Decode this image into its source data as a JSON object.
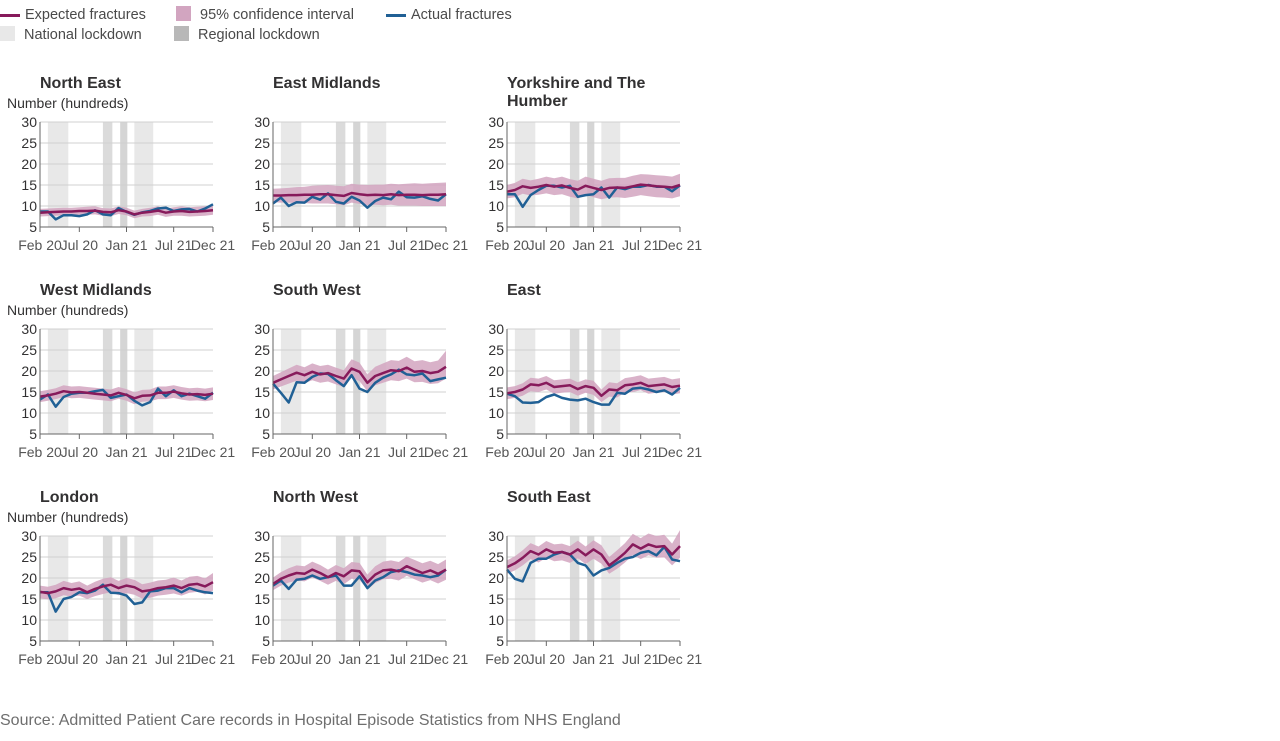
{
  "legend": {
    "expected": "Expected fractures",
    "ci": "95% confidence interval",
    "actual": "Actual fractures",
    "national": "National lockdown",
    "regional": "Regional lockdown"
  },
  "colors": {
    "expected": "#871a5b",
    "ci": "#d2a5c0",
    "actual": "#206095",
    "national": "#e8e8e8",
    "regional": "#c3c3c3",
    "grid": "#d0d0d0",
    "axis": "#666666",
    "text": "#323132"
  },
  "source": "Source: Admitted Patient Care records in Hospital Episode Statistics from NHS England",
  "chart_data": {
    "type": "line",
    "ylabel": "Number (hundreds)",
    "ylim": [
      5,
      30
    ],
    "yticks": [
      5,
      10,
      15,
      20,
      25,
      30
    ],
    "x_tick_labels": [
      "Feb 20",
      "Jul 20",
      "Jan 21",
      "Jul 21",
      "Dec 21"
    ],
    "x_tick_index": [
      0,
      5,
      11,
      17,
      22
    ],
    "x_points": 23,
    "national_lockdowns": [
      [
        1,
        3.6
      ],
      [
        10.2,
        11.1
      ],
      [
        12,
        14.4
      ]
    ],
    "regional_lockdowns": [
      [
        8,
        9.2
      ],
      [
        10.2,
        11.1
      ]
    ],
    "grid": true,
    "legend_position": "top-left",
    "panels": [
      {
        "title": "North East",
        "expected": [
          8.4,
          8.5,
          8.6,
          8.7,
          8.7,
          8.8,
          8.8,
          8.9,
          8.6,
          8.5,
          9.0,
          8.7,
          8.0,
          8.4,
          8.6,
          8.9,
          8.4,
          8.7,
          8.8,
          8.6,
          8.7,
          8.8,
          9.0
        ],
        "ci_low": [
          7.5,
          7.6,
          7.7,
          7.8,
          7.8,
          7.9,
          7.9,
          8.0,
          7.7,
          7.6,
          8.1,
          7.8,
          7.1,
          7.5,
          7.6,
          7.9,
          7.4,
          7.7,
          7.7,
          7.5,
          7.6,
          7.7,
          7.9
        ],
        "ci_high": [
          9.3,
          9.4,
          9.5,
          9.6,
          9.6,
          9.7,
          9.8,
          9.9,
          9.5,
          9.4,
          9.9,
          9.6,
          8.9,
          9.3,
          9.6,
          9.9,
          9.4,
          9.7,
          9.9,
          9.7,
          9.8,
          9.9,
          10.1
        ],
        "actual": [
          8.7,
          8.7,
          6.8,
          7.8,
          7.8,
          7.6,
          8.0,
          9.0,
          8.0,
          7.8,
          9.5,
          8.6,
          7.9,
          8.5,
          8.8,
          9.4,
          9.6,
          8.8,
          9.2,
          9.3,
          8.7,
          9.4,
          10.4
        ]
      },
      {
        "title": "East Midlands",
        "expected": [
          12.5,
          12.5,
          12.6,
          12.6,
          12.7,
          12.7,
          12.8,
          12.8,
          12.6,
          12.4,
          13.1,
          12.8,
          12.6,
          12.7,
          12.6,
          12.8,
          12.6,
          12.7,
          12.7,
          12.6,
          12.7,
          12.7,
          12.8
        ],
        "ci_low": [
          10.9,
          10.8,
          10.8,
          10.7,
          10.7,
          10.6,
          10.6,
          10.6,
          10.4,
          10.2,
          10.8,
          10.5,
          10.2,
          10.3,
          10.2,
          10.3,
          10.1,
          10.1,
          10.1,
          10.0,
          10.0,
          10.0,
          10.0
        ],
        "ci_high": [
          14.1,
          14.2,
          14.3,
          14.5,
          14.6,
          14.8,
          14.9,
          15.0,
          14.8,
          14.7,
          15.3,
          15.1,
          15.0,
          15.1,
          15.1,
          15.3,
          15.2,
          15.3,
          15.4,
          15.3,
          15.4,
          15.5,
          15.6
        ],
        "actual": [
          10.6,
          12.0,
          10.0,
          10.9,
          10.8,
          12.2,
          11.5,
          13.0,
          11.0,
          10.6,
          12.2,
          11.3,
          9.6,
          11.2,
          12.0,
          11.6,
          13.4,
          12.1,
          12.0,
          12.3,
          11.7,
          11.3,
          12.8
        ]
      },
      {
        "title": "Yorkshire and The Humber",
        "expected": [
          13.4,
          13.8,
          14.7,
          14.3,
          14.6,
          15.0,
          14.6,
          14.9,
          14.3,
          13.9,
          14.8,
          14.3,
          13.8,
          14.3,
          14.4,
          14.3,
          14.7,
          15.1,
          14.9,
          14.7,
          14.6,
          14.4,
          15.0
        ],
        "ci_low": [
          11.8,
          12.1,
          12.9,
          12.5,
          12.7,
          13.0,
          12.6,
          12.8,
          12.2,
          11.8,
          12.6,
          12.1,
          11.6,
          12.0,
          12.1,
          11.9,
          12.2,
          12.6,
          12.3,
          12.1,
          12.0,
          11.8,
          12.3
        ],
        "ci_high": [
          15.0,
          15.5,
          16.5,
          16.1,
          16.5,
          17.0,
          16.6,
          17.0,
          16.4,
          16.0,
          17.0,
          16.5,
          16.0,
          16.6,
          16.7,
          16.7,
          17.2,
          17.6,
          17.5,
          17.3,
          17.2,
          17.0,
          17.7
        ],
        "actual": [
          12.8,
          12.8,
          9.8,
          12.6,
          13.8,
          14.8,
          14.8,
          14.4,
          14.8,
          12.2,
          12.6,
          12.8,
          14.4,
          12.0,
          14.4,
          14.0,
          14.6,
          14.6,
          15.0,
          14.6,
          14.6,
          13.5,
          14.9
        ]
      },
      {
        "title": "West Midlands",
        "expected": [
          13.9,
          14.2,
          14.6,
          15.2,
          14.9,
          15.0,
          14.8,
          14.6,
          14.4,
          14.2,
          14.8,
          14.3,
          13.5,
          14.1,
          14.2,
          14.8,
          14.8,
          15.1,
          14.7,
          14.4,
          14.5,
          14.3,
          14.6
        ],
        "ci_low": [
          12.6,
          12.9,
          13.3,
          13.8,
          13.5,
          13.6,
          13.4,
          13.2,
          13.0,
          12.8,
          13.4,
          12.9,
          12.1,
          12.7,
          12.8,
          13.3,
          13.3,
          13.6,
          13.2,
          12.9,
          13.0,
          12.8,
          13.1
        ],
        "ci_high": [
          15.2,
          15.5,
          15.9,
          16.6,
          16.3,
          16.4,
          16.2,
          16.0,
          15.8,
          15.6,
          16.2,
          15.7,
          14.9,
          15.5,
          15.6,
          16.3,
          16.3,
          16.6,
          16.2,
          15.9,
          16.0,
          15.8,
          16.1
        ],
        "actual": [
          13.2,
          14.4,
          11.5,
          13.8,
          14.6,
          14.8,
          14.8,
          15.2,
          15.5,
          13.6,
          14.0,
          14.4,
          12.9,
          11.8,
          12.6,
          15.8,
          14.0,
          15.4,
          14.0,
          14.6,
          14.0,
          13.4,
          14.8
        ]
      },
      {
        "title": "South West",
        "expected": [
          17.2,
          18.0,
          18.8,
          19.6,
          19.0,
          19.8,
          19.2,
          19.5,
          18.8,
          18.2,
          20.6,
          19.8,
          17.2,
          18.8,
          19.5,
          20.2,
          20.0,
          20.8,
          19.8,
          20.0,
          19.5,
          19.8,
          21.0
        ],
        "ci_low": [
          15.6,
          16.3,
          17.0,
          17.7,
          17.1,
          17.8,
          17.2,
          17.5,
          16.8,
          16.2,
          18.4,
          17.6,
          15.2,
          16.6,
          17.2,
          17.8,
          17.6,
          18.2,
          17.3,
          17.4,
          16.9,
          17.1,
          18.2
        ],
        "ci_high": [
          18.8,
          19.7,
          20.6,
          21.5,
          20.9,
          21.8,
          21.2,
          21.5,
          20.8,
          20.2,
          22.8,
          22.0,
          19.2,
          21.0,
          21.8,
          22.6,
          22.4,
          23.4,
          22.3,
          22.6,
          22.1,
          22.5,
          24.8
        ],
        "actual": [
          17.0,
          14.8,
          12.5,
          17.3,
          17.2,
          18.6,
          19.4,
          19.3,
          17.8,
          16.4,
          19.0,
          15.8,
          15.0,
          17.2,
          18.4,
          19.2,
          20.3,
          19.2,
          19.0,
          19.4,
          17.6,
          18.0,
          18.4
        ]
      },
      {
        "title": "East",
        "expected": [
          14.7,
          15.0,
          15.6,
          16.8,
          16.6,
          17.2,
          16.2,
          16.4,
          16.6,
          15.7,
          16.4,
          16.0,
          14.1,
          15.6,
          15.4,
          16.6,
          16.8,
          17.2,
          16.4,
          16.6,
          16.8,
          16.2,
          16.5
        ],
        "ci_low": [
          13.3,
          13.6,
          14.1,
          15.2,
          15.0,
          15.6,
          14.6,
          14.8,
          15.0,
          14.1,
          14.8,
          14.3,
          12.6,
          13.9,
          13.7,
          14.9,
          15.0,
          15.4,
          14.6,
          14.8,
          15.0,
          14.4,
          14.7
        ],
        "ci_high": [
          16.1,
          16.4,
          17.1,
          18.4,
          18.2,
          18.8,
          17.8,
          18.0,
          18.2,
          17.3,
          18.0,
          17.7,
          15.6,
          17.3,
          17.1,
          18.3,
          18.6,
          19.0,
          18.2,
          18.4,
          18.6,
          18.0,
          18.3
        ],
        "actual": [
          14.6,
          14.0,
          12.5,
          12.4,
          12.6,
          13.8,
          14.4,
          13.6,
          13.2,
          13.0,
          13.4,
          12.6,
          12.0,
          12.0,
          14.8,
          14.6,
          15.8,
          16.0,
          15.6,
          15.0,
          15.4,
          14.4,
          16.0
        ]
      },
      {
        "title": "London",
        "expected": [
          16.7,
          16.4,
          16.8,
          17.6,
          17.2,
          17.5,
          16.6,
          17.4,
          18.0,
          18.4,
          17.6,
          18.2,
          17.8,
          16.8,
          17.1,
          17.6,
          17.8,
          18.2,
          17.6,
          18.4,
          18.6,
          18.0,
          19.0
        ],
        "ci_low": [
          15.2,
          14.9,
          15.2,
          15.9,
          15.6,
          15.8,
          15.0,
          15.7,
          16.2,
          16.6,
          15.9,
          16.4,
          16.0,
          15.1,
          15.3,
          15.8,
          16.0,
          16.3,
          15.8,
          16.5,
          16.7,
          16.1,
          17.0
        ],
        "ci_high": [
          18.2,
          17.9,
          18.4,
          19.3,
          18.8,
          19.2,
          18.2,
          19.1,
          19.8,
          20.2,
          19.3,
          20.0,
          19.6,
          18.5,
          18.9,
          19.4,
          19.6,
          20.1,
          19.4,
          20.3,
          20.5,
          19.9,
          21.2
        ],
        "actual": [
          16.6,
          16.6,
          12.0,
          15.0,
          15.5,
          16.6,
          16.4,
          17.0,
          18.4,
          16.5,
          16.4,
          15.8,
          13.8,
          14.2,
          16.8,
          17.0,
          17.6,
          17.6,
          16.6,
          17.6,
          17.0,
          16.6,
          16.4
        ]
      },
      {
        "title": "North West",
        "expected": [
          18.6,
          19.8,
          20.6,
          21.2,
          21.0,
          22.0,
          21.2,
          20.2,
          21.2,
          20.4,
          21.8,
          21.6,
          19.0,
          20.8,
          21.8,
          22.0,
          21.6,
          22.8,
          22.0,
          21.2,
          21.8,
          21.0,
          22.0
        ],
        "ci_low": [
          17.1,
          18.2,
          18.9,
          19.4,
          19.2,
          20.1,
          19.3,
          18.4,
          19.3,
          18.5,
          19.8,
          19.6,
          17.2,
          18.8,
          19.7,
          19.8,
          19.4,
          20.5,
          19.7,
          18.9,
          19.5,
          18.7,
          19.6
        ],
        "ci_high": [
          20.1,
          21.4,
          22.3,
          23.0,
          22.8,
          23.9,
          23.1,
          22.0,
          23.1,
          22.3,
          23.8,
          23.6,
          20.8,
          22.8,
          23.9,
          24.2,
          23.8,
          25.1,
          24.3,
          23.5,
          24.1,
          23.3,
          24.4
        ],
        "actual": [
          18.2,
          19.4,
          17.4,
          19.6,
          19.8,
          20.6,
          19.8,
          20.2,
          20.6,
          18.2,
          18.2,
          20.4,
          17.6,
          19.4,
          20.2,
          21.4,
          21.8,
          21.4,
          20.8,
          20.6,
          20.2,
          20.6,
          22.0
        ]
      },
      {
        "title": "South East",
        "expected": [
          22.6,
          23.5,
          24.8,
          26.4,
          25.6,
          26.8,
          26.0,
          26.2,
          25.6,
          26.8,
          25.4,
          26.8,
          25.6,
          23.0,
          24.4,
          26.0,
          28.0,
          27.0,
          28.0,
          27.4,
          27.6,
          25.6,
          27.6
        ],
        "ci_low": [
          21.0,
          21.8,
          23.0,
          24.5,
          23.7,
          24.8,
          24.0,
          24.2,
          23.6,
          24.7,
          23.3,
          24.6,
          23.4,
          21.0,
          22.2,
          23.7,
          25.5,
          24.5,
          25.4,
          24.8,
          24.9,
          23.0,
          24.8
        ],
        "ci_high": [
          24.2,
          25.2,
          26.6,
          28.3,
          27.5,
          28.8,
          28.0,
          28.2,
          27.6,
          28.9,
          27.5,
          29.0,
          27.8,
          25.0,
          26.6,
          28.3,
          30.5,
          29.5,
          30.6,
          30.0,
          30.3,
          28.2,
          31.4
        ],
        "actual": [
          22.0,
          19.8,
          19.2,
          23.6,
          24.6,
          24.6,
          25.6,
          26.2,
          25.6,
          23.6,
          23.0,
          20.6,
          21.8,
          22.4,
          23.6,
          24.6,
          25.0,
          26.0,
          26.4,
          25.4,
          27.4,
          24.4,
          24.0
        ]
      }
    ]
  }
}
